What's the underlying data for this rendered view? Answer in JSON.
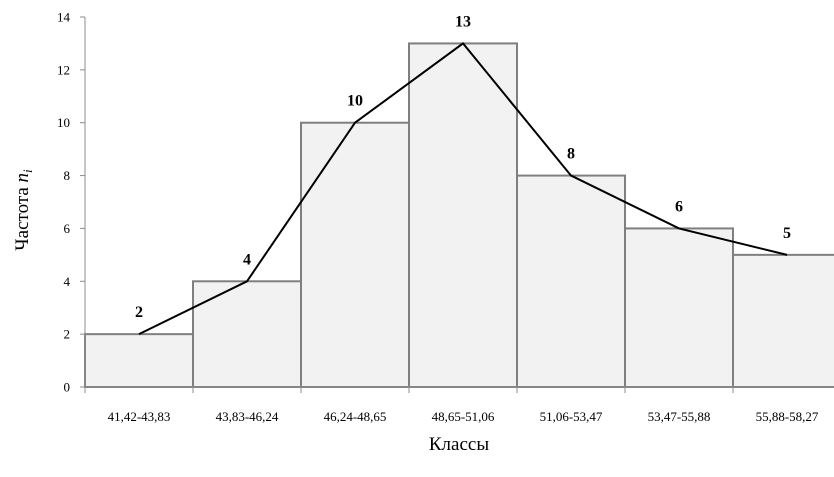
{
  "chart_data": {
    "type": "bar",
    "categories": [
      "41,42-43,83",
      "43,83-46,24",
      "46,24-48,65",
      "48,65-51,06",
      "51,06-53,47",
      "53,47-55,88",
      "55,88-58,27"
    ],
    "values": [
      2,
      4,
      10,
      13,
      8,
      6,
      5
    ],
    "data_labels": [
      "2",
      "4",
      "10",
      "13",
      "8",
      "6",
      "5"
    ],
    "overlay": "frequency-polygon",
    "xlabel": "Классы",
    "ylabel_text": "Частота ",
    "ylabel_var": "n",
    "ylabel_sub": "i",
    "ylim": [
      0,
      14
    ],
    "yticks": [
      0,
      2,
      4,
      6,
      8,
      10,
      12,
      14
    ],
    "ytick_labels": [
      "0",
      "2",
      "4",
      "6",
      "8",
      "10",
      "12",
      "14"
    ],
    "grid": false,
    "bar_fill": "#f2f2f2",
    "bar_edge": "#7f7f7f",
    "line_color": "#000000"
  }
}
